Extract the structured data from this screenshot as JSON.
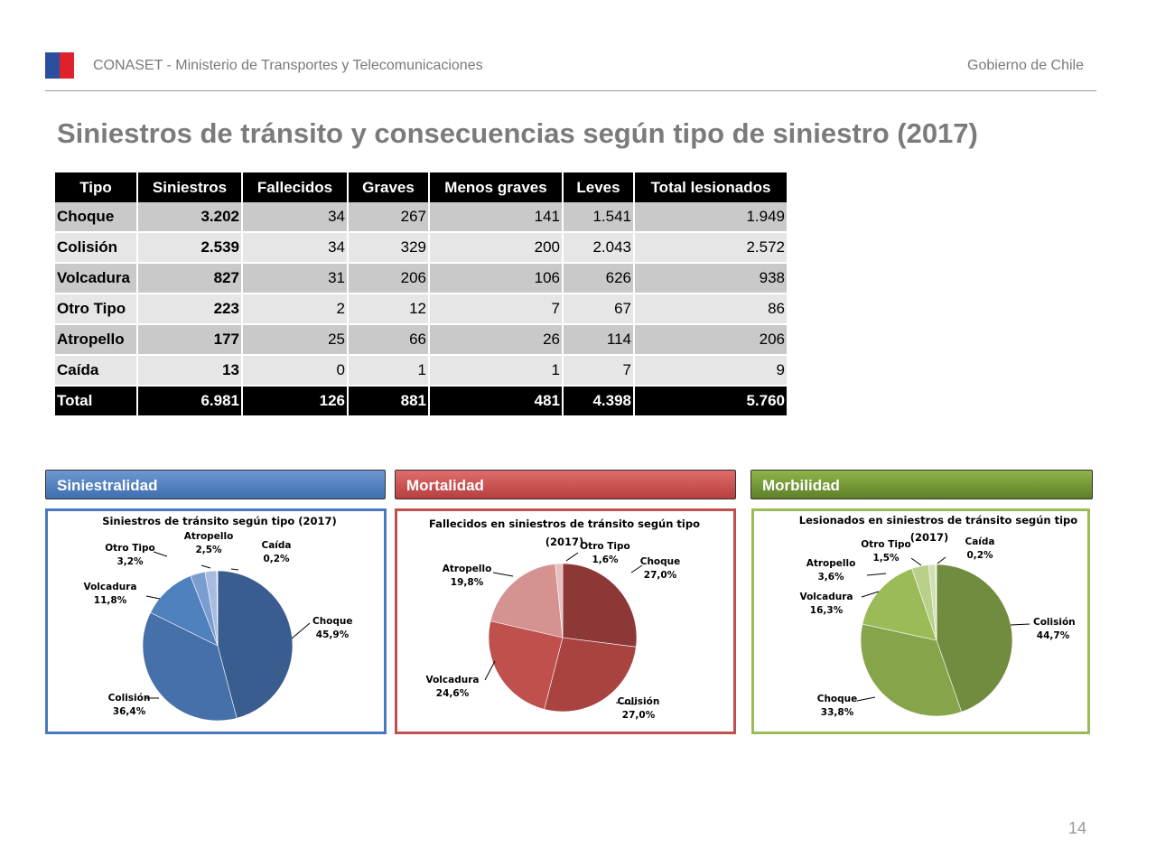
{
  "header": {
    "organization": "CONASET - Ministerio de Transportes y Telecomunicaciones",
    "government": "Gobierno de Chile"
  },
  "title": "Siniestros de tránsito y consecuencias según tipo de siniestro (2017)",
  "table": {
    "headers": [
      "Tipo",
      "Siniestros",
      "Fallecidos",
      "Graves",
      "Menos graves",
      "Leves",
      "Total lesionados"
    ],
    "rows": [
      [
        "Choque",
        "3.202",
        "34",
        "267",
        "141",
        "1.541",
        "1.949"
      ],
      [
        "Colisión",
        "2.539",
        "34",
        "329",
        "200",
        "2.043",
        "2.572"
      ],
      [
        "Volcadura",
        "827",
        "31",
        "206",
        "106",
        "626",
        "938"
      ],
      [
        "Otro Tipo",
        "223",
        "2",
        "12",
        "7",
        "67",
        "86"
      ],
      [
        "Atropello",
        "177",
        "25",
        "66",
        "26",
        "114",
        "206"
      ],
      [
        "Caída",
        "13",
        "0",
        "1",
        "1",
        "7",
        "9"
      ]
    ],
    "total": [
      "Total",
      "6.981",
      "126",
      "881",
      "481",
      "4.398",
      "5.760"
    ]
  },
  "sections": {
    "siniestralidad": "Siniestralidad",
    "mortalidad": "Mortalidad",
    "morbilidad": "Morbilidad"
  },
  "chart_data": [
    {
      "type": "pie",
      "title": "Siniestros de tránsito según tipo (2017)",
      "slices": [
        {
          "label": "Choque",
          "value": 45.9,
          "text": "45,9%",
          "color": "#395d8f"
        },
        {
          "label": "Colisión",
          "value": 36.4,
          "text": "36,4%",
          "color": "#4570a9"
        },
        {
          "label": "Volcadura",
          "value": 11.8,
          "text": "11,8%",
          "color": "#4f81bd"
        },
        {
          "label": "Otro Tipo",
          "value": 3.2,
          "text": "3,2%",
          "color": "#7a9cd0"
        },
        {
          "label": "Atropello",
          "value": 2.5,
          "text": "2,5%",
          "color": "#a7bde0"
        },
        {
          "label": "Caída",
          "value": 0.2,
          "text": "0,2%",
          "color": "#d3dff0"
        }
      ]
    },
    {
      "type": "pie",
      "title": "Fallecidos en siniestros de tránsito según tipo (2017)",
      "slices": [
        {
          "label": "Choque",
          "value": 27.0,
          "text": "27,0%",
          "color": "#8c3836"
        },
        {
          "label": "Colisión",
          "value": 27.0,
          "text": "27,0%",
          "color": "#a84340"
        },
        {
          "label": "Volcadura",
          "value": 24.6,
          "text": "24,6%",
          "color": "#c0504d"
        },
        {
          "label": "Atropello",
          "value": 19.8,
          "text": "19,8%",
          "color": "#d49291"
        },
        {
          "label": "Otro Tipo",
          "value": 1.6,
          "text": "1,6%",
          "color": "#e6c0bf"
        }
      ]
    },
    {
      "type": "pie",
      "title": "Lesionados en siniestros de tránsito según tipo (2017)",
      "slices": [
        {
          "label": "Colisión",
          "value": 44.7,
          "text": "44,7%",
          "color": "#728c3f"
        },
        {
          "label": "Choque",
          "value": 33.8,
          "text": "33,8%",
          "color": "#86a44a"
        },
        {
          "label": "Volcadura",
          "value": 16.3,
          "text": "16,3%",
          "color": "#9bbb59"
        },
        {
          "label": "Atropello",
          "value": 3.6,
          "text": "3,6%",
          "color": "#b9d08a"
        },
        {
          "label": "Otro Tipo",
          "value": 1.5,
          "text": "1,5%",
          "color": "#d0e0b0"
        },
        {
          "label": "Caída",
          "value": 0.2,
          "text": "0,2%",
          "color": "#e6efd6"
        }
      ]
    }
  ],
  "page_number": "14"
}
